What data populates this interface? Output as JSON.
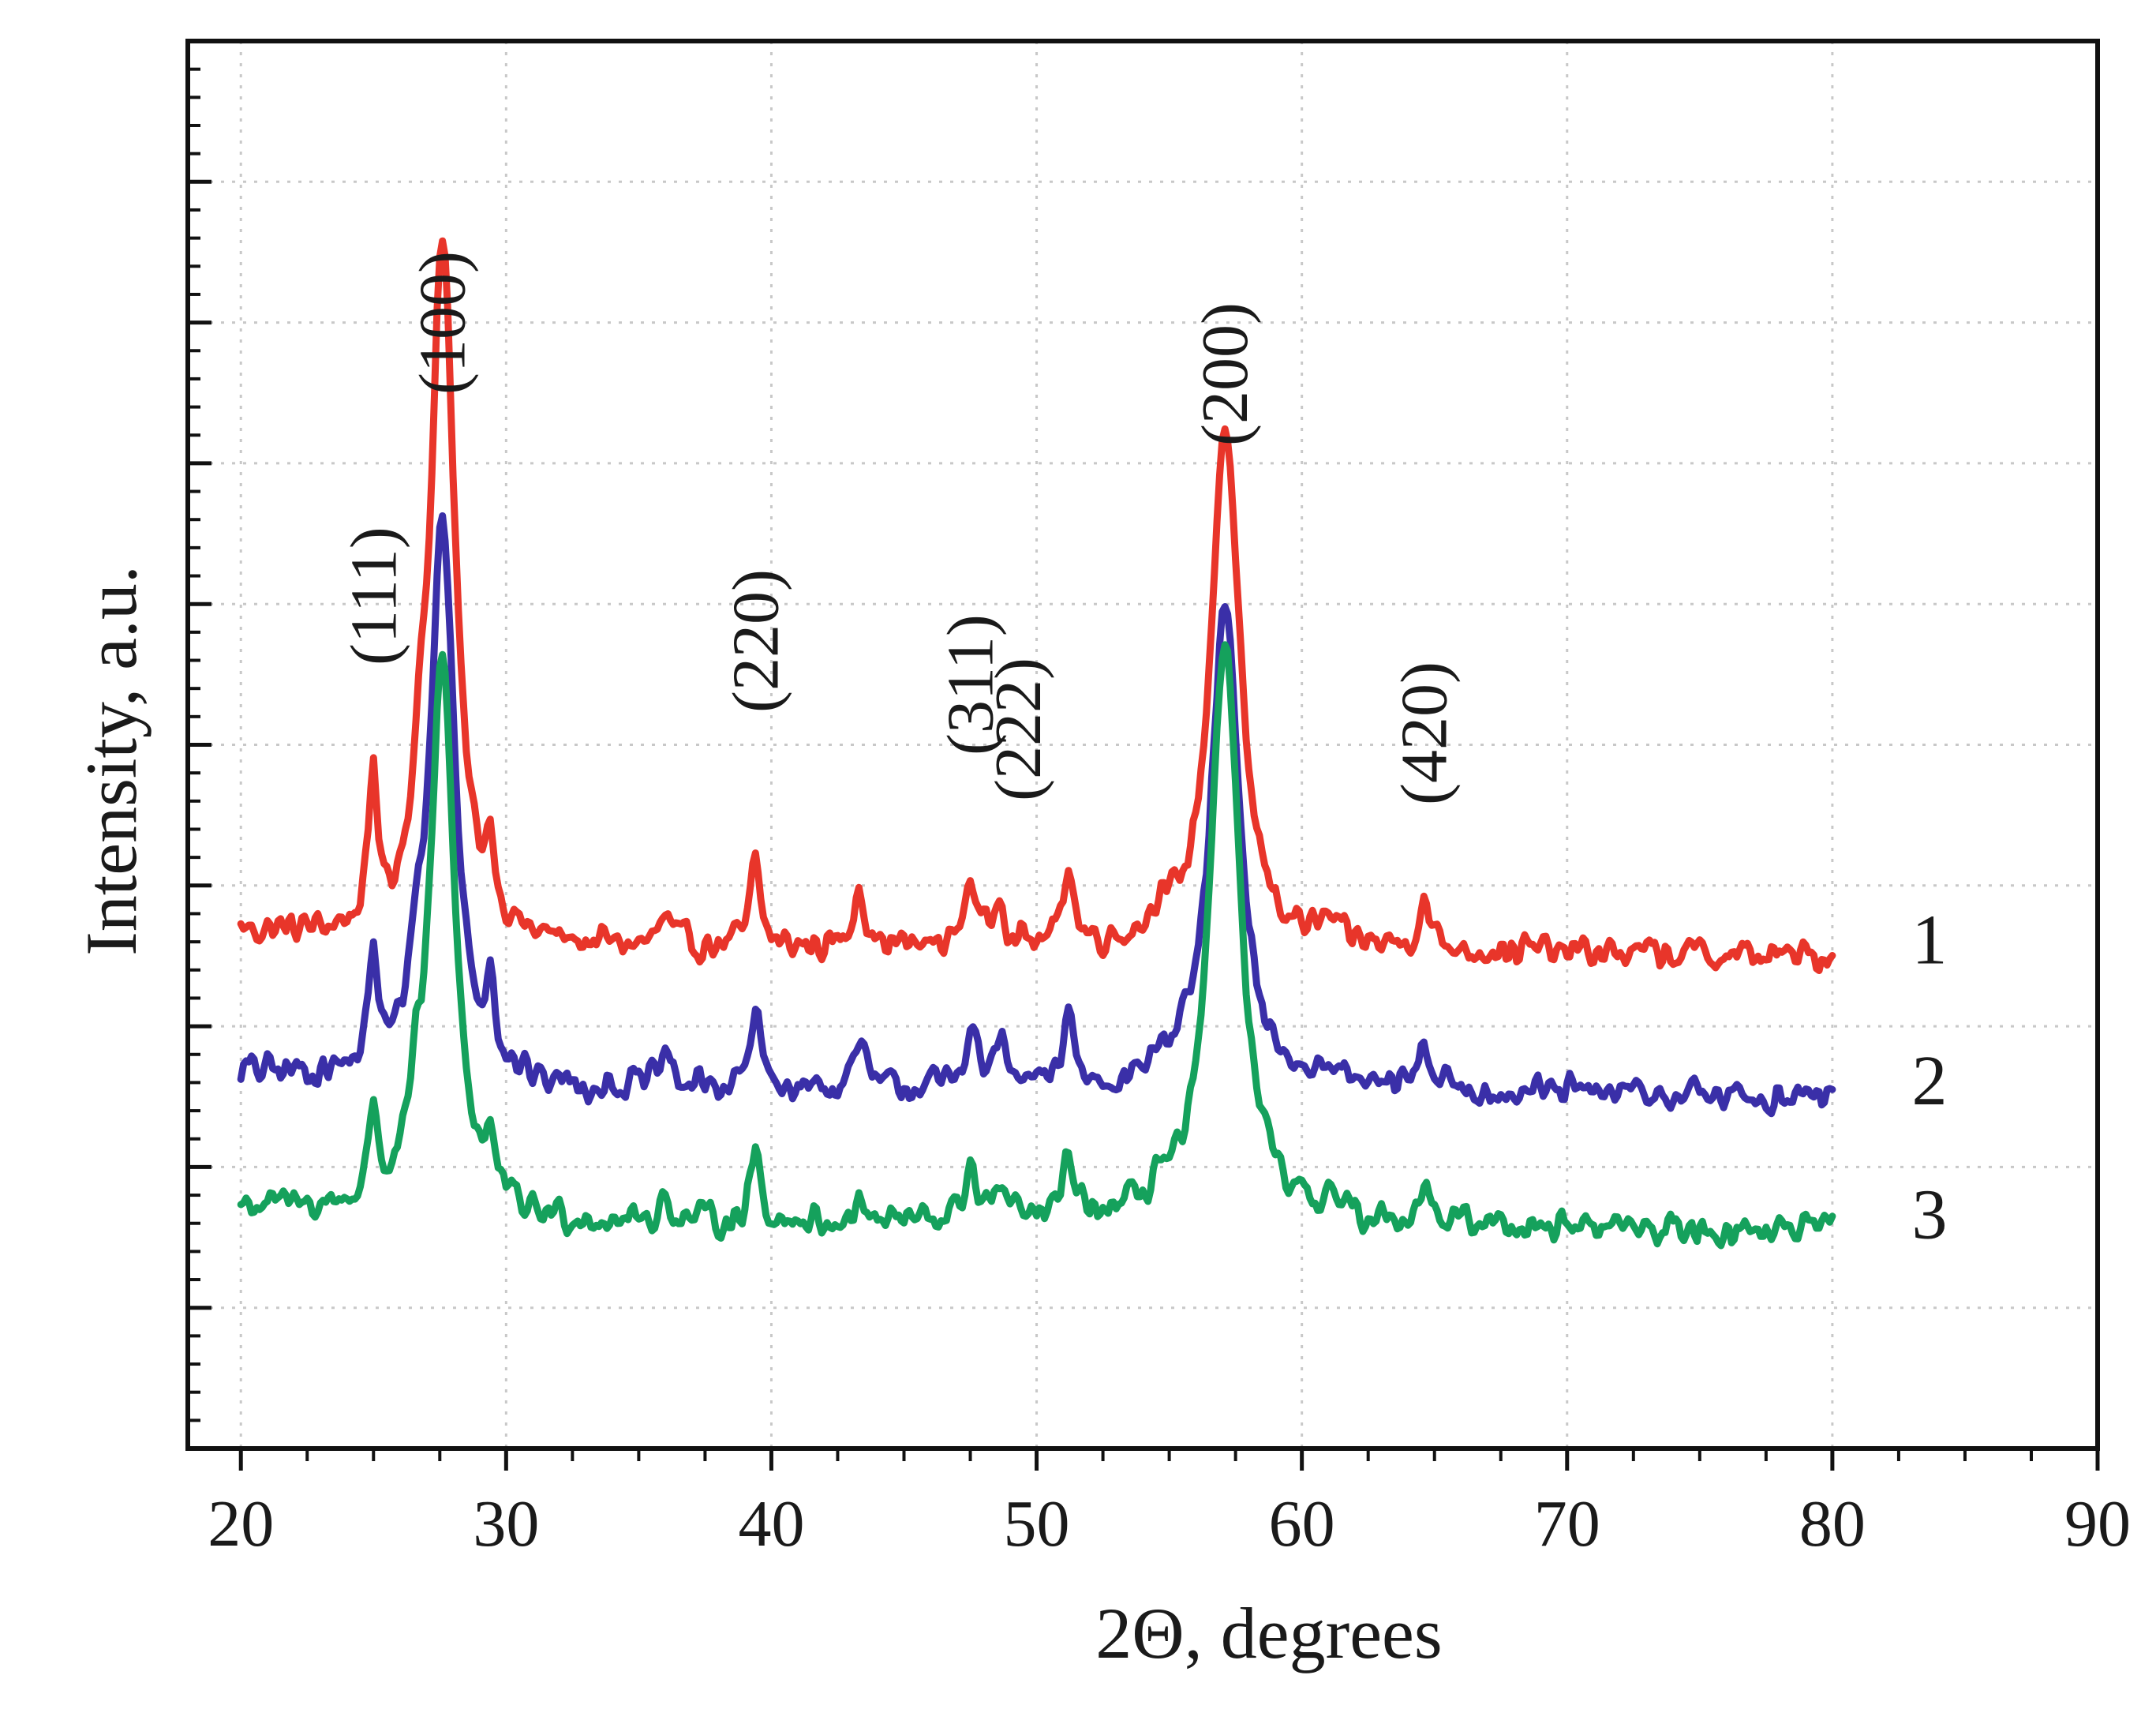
{
  "chart_data": {
    "type": "line",
    "title": "",
    "xlabel": "2Θ, degrees",
    "ylabel": "Intensity, a.u.",
    "xlim": [
      18,
      90
    ],
    "ylim": [
      0,
      100
    ],
    "xticks": [
      20,
      30,
      40,
      50,
      60,
      70,
      80,
      90
    ],
    "x_tick_labels": [
      "20",
      "30",
      "40",
      "50",
      "60",
      "70",
      "80",
      "90"
    ],
    "y_tick_labels_shown": false,
    "grid": true,
    "series": [
      {
        "name": "1",
        "color": "#e8352a",
        "baseline": 35.5,
        "peaks": [
          {
            "x": 25.0,
            "h": 11,
            "w": 0.18
          },
          {
            "x": 26.7,
            "h": 5,
            "w": 0.3
          },
          {
            "x": 27.6,
            "h": 50,
            "w": 0.55
          },
          {
            "x": 29.4,
            "h": 5,
            "w": 0.2
          },
          {
            "x": 36.0,
            "h": 2,
            "w": 0.25
          },
          {
            "x": 39.4,
            "h": 6,
            "w": 0.22
          },
          {
            "x": 43.3,
            "h": 5,
            "w": 0.22
          },
          {
            "x": 47.5,
            "h": 5,
            "w": 0.25
          },
          {
            "x": 48.6,
            "h": 4,
            "w": 0.22
          },
          {
            "x": 51.2,
            "h": 6,
            "w": 0.22
          },
          {
            "x": 54.6,
            "h": 2,
            "w": 0.3
          },
          {
            "x": 57.1,
            "h": 37,
            "w": 0.65
          },
          {
            "x": 61.0,
            "h": 1.5,
            "w": 0.25
          },
          {
            "x": 64.6,
            "h": 3.5,
            "w": 0.25
          }
        ]
      },
      {
        "name": "2",
        "color": "#3a2fa8",
        "baseline": 25.5,
        "peaks": [
          {
            "x": 25.0,
            "h": 8.5,
            "w": 0.18
          },
          {
            "x": 26.6,
            "h": 5,
            "w": 0.3
          },
          {
            "x": 27.6,
            "h": 40,
            "w": 0.55
          },
          {
            "x": 29.4,
            "h": 6,
            "w": 0.2
          },
          {
            "x": 36.0,
            "h": 2.5,
            "w": 0.25
          },
          {
            "x": 39.4,
            "h": 5.5,
            "w": 0.22
          },
          {
            "x": 43.3,
            "h": 3.5,
            "w": 0.22
          },
          {
            "x": 47.5,
            "h": 4.5,
            "w": 0.25
          },
          {
            "x": 48.6,
            "h": 3.5,
            "w": 0.22
          },
          {
            "x": 51.2,
            "h": 5.5,
            "w": 0.22
          },
          {
            "x": 54.6,
            "h": 1.5,
            "w": 0.3
          },
          {
            "x": 57.1,
            "h": 34,
            "w": 0.65
          },
          {
            "x": 61.0,
            "h": 1.5,
            "w": 0.25
          },
          {
            "x": 64.6,
            "h": 3.5,
            "w": 0.25
          }
        ]
      },
      {
        "name": "3",
        "color": "#15a15c",
        "baseline": 16,
        "peaks": [
          {
            "x": 25.0,
            "h": 7,
            "w": 0.18
          },
          {
            "x": 26.6,
            "h": 4,
            "w": 0.3
          },
          {
            "x": 27.6,
            "h": 40,
            "w": 0.55
          },
          {
            "x": 29.4,
            "h": 3.5,
            "w": 0.2
          },
          {
            "x": 36.0,
            "h": 1.5,
            "w": 0.25
          },
          {
            "x": 39.4,
            "h": 5,
            "w": 0.22
          },
          {
            "x": 43.3,
            "h": 1.5,
            "w": 0.22
          },
          {
            "x": 47.5,
            "h": 4,
            "w": 0.25
          },
          {
            "x": 48.6,
            "h": 2.5,
            "w": 0.22
          },
          {
            "x": 51.2,
            "h": 4.5,
            "w": 0.22
          },
          {
            "x": 54.6,
            "h": 2,
            "w": 0.3
          },
          {
            "x": 57.1,
            "h": 42,
            "w": 0.65
          },
          {
            "x": 61.0,
            "h": 1.5,
            "w": 0.25
          },
          {
            "x": 64.6,
            "h": 3,
            "w": 0.25
          }
        ]
      }
    ],
    "annotations": [
      {
        "text": "(111)",
        "x": 25.0
      },
      {
        "text": "(100)",
        "x": 27.6
      },
      {
        "text": "(220)",
        "x": 39.4
      },
      {
        "text": "(311)",
        "x": 47.5
      },
      {
        "text": "(222)",
        "x": 49.6
      },
      {
        "text": "(200)",
        "x": 57.1
      },
      {
        "text": "(420)",
        "x": 64.6
      }
    ]
  }
}
